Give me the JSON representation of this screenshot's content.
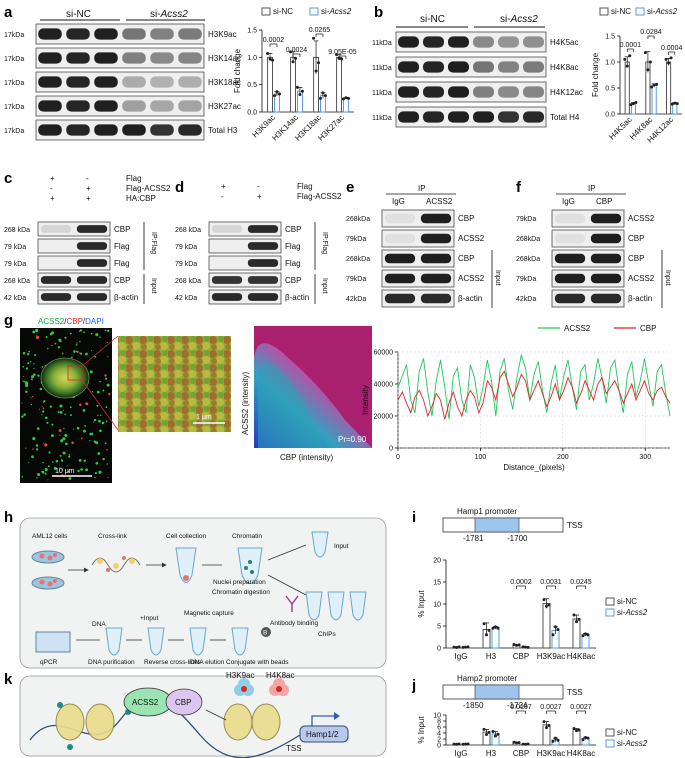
{
  "panel_a": {
    "letter": "a",
    "group_nc": "si-NC",
    "group_si_prefix": "si-",
    "group_si_gene": "Acss2",
    "blots": [
      {
        "kda": "17kDa",
        "label": "H3K9ac",
        "si_strength": 0.55
      },
      {
        "kda": "17kDa",
        "label": "H3K14ac",
        "si_strength": 0.5
      },
      {
        "kda": "17kDa",
        "label": "H3K18ac",
        "si_strength": 0.3
      },
      {
        "kda": "17kDa",
        "label": "H3K27ac",
        "si_strength": 0.35
      },
      {
        "kda": "17kDa",
        "label": "Total H3",
        "si_strength": 0.95
      }
    ]
  },
  "panel_b": {
    "letter": "b",
    "group_nc": "si-NC",
    "group_si_prefix": "si-",
    "group_si_gene": "Acss2",
    "blots": [
      {
        "kda": "11kDa",
        "label": "H4K5ac",
        "si_strength": 0.45
      },
      {
        "kda": "11kDa",
        "label": "H4K8ac",
        "si_strength": 0.55
      },
      {
        "kda": "11kDa",
        "label": "H4K12ac",
        "si_strength": 0.5
      },
      {
        "kda": "11kDa",
        "label": "Total H4",
        "si_strength": 0.95
      }
    ]
  },
  "panel_c": {
    "letter": "c",
    "rows": [
      {
        "label": "Flag",
        "signs": [
          "+",
          "-"
        ]
      },
      {
        "label": "Flag-ACSS2",
        "signs": [
          "-",
          "+"
        ]
      },
      {
        "label": "HA:CBP",
        "signs": [
          "+",
          "+"
        ]
      }
    ],
    "blots": [
      {
        "kda": "268 kDa",
        "label": "CBP",
        "pattern": [
          0.1,
          0.9
        ]
      },
      {
        "kda": "79 kDa",
        "label": "Flag",
        "pattern": [
          0.0,
          0.9
        ]
      },
      {
        "kda": "79 kDa",
        "label": "Flag",
        "pattern": [
          0.0,
          0.9
        ]
      },
      {
        "kda": "268 kDa",
        "label": "CBP",
        "pattern": [
          0.9,
          0.9
        ]
      },
      {
        "kda": "42 kDa",
        "label": "β-actin",
        "pattern": [
          0.9,
          0.9
        ]
      }
    ],
    "bracket_ip": "IP:Flag",
    "bracket_input": "Input"
  },
  "panel_d": {
    "letter": "d",
    "rows": [
      {
        "label": "Flag",
        "signs": [
          "+",
          "-"
        ]
      },
      {
        "label": "Flag-ACSS2",
        "signs": [
          "-",
          "+"
        ]
      }
    ],
    "blots": [
      {
        "kda": "268 kDa",
        "label": "CBP",
        "pattern": [
          0.1,
          0.9
        ]
      },
      {
        "kda": "79 kDa",
        "label": "Flag",
        "pattern": [
          0.0,
          0.9
        ]
      },
      {
        "kda": "79 kDa",
        "label": "Flag",
        "pattern": [
          0.0,
          0.9
        ]
      },
      {
        "kda": "268 kDa",
        "label": "CBP",
        "pattern": [
          0.85,
          0.85
        ]
      },
      {
        "kda": "42 kDa",
        "label": "β-actin",
        "pattern": [
          0.9,
          0.9
        ]
      }
    ],
    "bracket_ip": "IP:Flag",
    "bracket_input": "Input"
  },
  "panel_e": {
    "letter": "e",
    "ip_header": "IP",
    "lanes": [
      "IgG",
      "ACSS2"
    ],
    "blots": [
      {
        "kda": "268kDa",
        "label": "CBP",
        "pattern": [
          0.05,
          0.95
        ]
      },
      {
        "kda": "79kDa",
        "label": "ACSS2",
        "pattern": [
          0.05,
          0.95
        ]
      },
      {
        "kda": "268kDa",
        "label": "CBP",
        "pattern": [
          0.95,
          0.95
        ]
      },
      {
        "kda": "79kDa",
        "label": "ACSS2",
        "pattern": [
          0.95,
          0.95
        ]
      },
      {
        "kda": "42kDa",
        "label": "β-actin",
        "pattern": [
          0.9,
          0.9
        ]
      }
    ],
    "bracket_input": "Input"
  },
  "panel_f": {
    "letter": "f",
    "ip_header": "IP",
    "lanes": [
      "IgG",
      "CBP"
    ],
    "blots": [
      {
        "kda": "79kDa",
        "label": "ACSS2",
        "pattern": [
          0.05,
          0.95
        ]
      },
      {
        "kda": "268kDa",
        "label": "CBP",
        "pattern": [
          0.05,
          0.95
        ]
      },
      {
        "kda": "268kDa",
        "label": "CBP",
        "pattern": [
          0.95,
          0.95
        ]
      },
      {
        "kda": "79kDa",
        "label": "ACSS2",
        "pattern": [
          0.95,
          0.95
        ]
      },
      {
        "kda": "42kDa",
        "label": "β-actin",
        "pattern": [
          0.9,
          0.9
        ]
      }
    ],
    "bracket_input": "Input"
  },
  "panel_g": {
    "letter": "g",
    "stain_acss2": "ACSS2",
    "stain_cbp": "CBP",
    "stain_dapi": "DAPI",
    "scale_main": "10 μm",
    "scale_zoom": "1 μm",
    "scatter_xlabel": "CBP (intensity)",
    "scatter_ylabel": "ACSS2 (intensity)",
    "pearson": "Pr=0.90",
    "colors": {
      "acss2": "#22c55e",
      "cbp": "#dc2626",
      "dapi": "#2563eb"
    }
  },
  "panel_h": {
    "letter": "h",
    "labels": {
      "aml12": "AML12 cells",
      "crosslink": "Cross-link",
      "collection": "Cell collection",
      "chromatin": "Chromatin",
      "input": "Input",
      "nuclei": "Nuclei preparation",
      "digestion": "Chromatin digestion",
      "antibody": "Antibody binding",
      "chips": "ChIPs",
      "conjugate": "Conjugate with beads",
      "magnetic": "Magnetic capture",
      "elution": "DNA elution",
      "plus_input": "+Input",
      "reverse": "Reverse cross-links",
      "purification": "DNA purification",
      "qpcr": "qPCR",
      "bead": "B"
    }
  },
  "panel_k": {
    "letter": "k",
    "labels": {
      "acss2": "ACSS2",
      "cbp": "CBP",
      "h3k9ac": "H3K9ac",
      "h4k8ac": "H4K8ac",
      "tss": "TSS",
      "hamp": "Hamp1/2"
    }
  },
  "chart_data": [
    {
      "id": "a",
      "type": "bar",
      "categories": [
        "H3K9ac",
        "H3K14ac",
        "H3K18ac",
        "H3K27ac"
      ],
      "series": [
        {
          "name": "si-NC",
          "values": [
            1.0,
            1.0,
            1.0,
            1.0
          ]
        },
        {
          "name": "si-Acss2",
          "values": [
            0.33,
            0.38,
            0.3,
            0.25
          ]
        }
      ],
      "points": {
        "si-NC": [
          [
            1.07,
            0.97,
            0.95
          ],
          [
            1.1,
            0.92,
            0.98
          ],
          [
            1.35,
            0.75,
            0.9
          ],
          [
            1.05,
            0.98,
            0.97
          ]
        ],
        "si-Acss2": [
          [
            0.3,
            0.37,
            0.33
          ],
          [
            0.45,
            0.32,
            0.38
          ],
          [
            0.25,
            0.35,
            0.3
          ],
          [
            0.24,
            0.26,
            0.25
          ]
        ]
      },
      "errors": {
        "si-NC": [
          0.07,
          0.1,
          0.3,
          0.05
        ],
        "si-Acss2": [
          0.04,
          0.07,
          0.05,
          0.01
        ]
      },
      "pvalues": [
        "0.0002",
        "0.0024",
        "0.0265",
        "9.05E-05"
      ],
      "ylabel": "Fold change",
      "ylim": [
        0,
        1.5
      ],
      "yticks": [
        "0.0",
        "0.5",
        "1.0",
        "1.5"
      ],
      "legend": "top"
    },
    {
      "id": "b",
      "type": "bar",
      "categories": [
        "H4K5ac",
        "H4K8ac",
        "H4K12ac"
      ],
      "series": [
        {
          "name": "si-NC",
          "values": [
            1.0,
            1.0,
            1.0
          ]
        },
        {
          "name": "si-Acss2",
          "values": [
            0.2,
            0.55,
            0.2
          ]
        }
      ],
      "points": {
        "si-NC": [
          [
            1.05,
            0.92,
            1.12
          ],
          [
            1.18,
            0.85,
            1.0
          ],
          [
            1.05,
            0.98,
            1.08
          ]
        ],
        "si-Acss2": [
          [
            0.18,
            0.2,
            0.22
          ],
          [
            0.52,
            0.56,
            0.57
          ],
          [
            0.19,
            0.21,
            0.2
          ]
        ]
      },
      "errors": {
        "si-NC": [
          0.1,
          0.2,
          0.07
        ],
        "si-Acss2": [
          0.02,
          0.03,
          0.02
        ]
      },
      "pvalues": [
        "0.0001",
        "0.0284",
        "0.0004"
      ],
      "ylabel": "Fold change",
      "ylim": [
        0,
        1.5
      ],
      "yticks": [
        "0.0",
        "0.5",
        "1.0",
        "1.5"
      ],
      "legend": "top"
    },
    {
      "id": "g",
      "type": "line",
      "x_range": [
        0,
        330
      ],
      "xticks": [
        0,
        100,
        200,
        300
      ],
      "ylim": [
        0,
        60000
      ],
      "yticks": [
        0,
        20000,
        40000,
        60000
      ],
      "xlabel": "Distance_(pixels)",
      "ylabel": "Intensity",
      "series": [
        {
          "name": "ACSS2",
          "color": "#22c55e",
          "values": [
            38000,
            45000,
            52000,
            30000,
            22000,
            48000,
            56000,
            35000,
            20000,
            42000,
            55000,
            38000,
            18000,
            45000,
            50000,
            30000,
            22000,
            52000,
            44000,
            26000,
            38000,
            55000,
            42000,
            20000,
            48000,
            56000,
            36000,
            24000,
            44000,
            58000,
            50000,
            30000,
            46000,
            54000,
            36000,
            22000,
            40000,
            52000,
            30000,
            45000,
            55000,
            38000,
            24000,
            48000,
            52000,
            30000,
            40000,
            56000,
            44000,
            28000,
            50000,
            55000,
            36000,
            22000,
            46000,
            54000,
            32000,
            42000,
            56000,
            40000,
            26000,
            48000,
            52000,
            34000,
            20000
          ]
        },
        {
          "name": "CBP",
          "color": "#dc2626",
          "values": [
            30000,
            35000,
            28000,
            22000,
            32000,
            36000,
            30000,
            20000,
            26000,
            34000,
            30000,
            18000,
            28000,
            35000,
            26000,
            20000,
            30000,
            36000,
            32000,
            22000,
            28000,
            42000,
            38000,
            30000,
            44000,
            48000,
            40000,
            32000,
            38000,
            46000,
            42000,
            30000,
            36000,
            42000,
            34000,
            26000,
            32000,
            40000,
            30000,
            36000,
            44000,
            38000,
            28000,
            34000,
            42000,
            36000,
            30000,
            40000,
            44000,
            34000,
            38000,
            42000,
            36000,
            28000,
            34000,
            40000,
            30000,
            36000,
            42000,
            34000,
            30000,
            36000,
            38000,
            32000,
            28000
          ]
        }
      ],
      "legend": "top-right"
    },
    {
      "id": "i",
      "type": "bar",
      "promoter_title": "Hamp1 promoter",
      "region_start": "-1781",
      "region_end": "-1700",
      "tss": "TSS",
      "categories": [
        "IgG",
        "H3",
        "CBP",
        "H3K9ac",
        "H4K8ac"
      ],
      "series": [
        {
          "name": "si-NC",
          "values": [
            0.2,
            4.2,
            0.7,
            10.1,
            6.6
          ]
        },
        {
          "name": "si-Acss2",
          "values": [
            0.2,
            4.6,
            0.2,
            4.0,
            3.0
          ]
        }
      ],
      "points": {
        "si-NC": [
          [
            0.2,
            0.1,
            0.25
          ],
          [
            5.5,
            3.0,
            4.0
          ],
          [
            0.8,
            0.6,
            0.7
          ],
          [
            11.0,
            9.5,
            9.8
          ],
          [
            7.5,
            6.0,
            6.5
          ]
        ],
        "si-Acss2": [
          [
            0.15,
            0.2,
            0.25
          ],
          [
            4.5,
            4.8,
            4.5
          ],
          [
            0.25,
            0.2,
            0.15
          ],
          [
            3.0,
            4.8,
            4.2
          ],
          [
            2.8,
            3.2,
            3.0
          ]
        ]
      },
      "errors": {
        "si-NC": [
          0.1,
          1.5,
          0.1,
          1.1,
          0.9
        ],
        "si-Acss2": [
          0.05,
          0.3,
          0.05,
          0.8,
          0.3
        ]
      },
      "pvalues": [
        "0.0002",
        "0.0031",
        "0.0245"
      ],
      "pvalue_categories": [
        "CBP",
        "H3K9ac",
        "H4K8ac"
      ],
      "ylabel": "% Input",
      "ylim": [
        0,
        20
      ],
      "yticks": [
        0,
        5,
        10,
        15,
        20
      ],
      "legend": "right"
    },
    {
      "id": "j",
      "type": "bar",
      "promoter_title": "Hamp2 promoter",
      "region_start": "-1850",
      "region_end": "-1724",
      "tss": "TSS",
      "categories": [
        "IgG",
        "H3",
        "CBP",
        "H3K9ac",
        "H4K8ac"
      ],
      "series": [
        {
          "name": "si-NC",
          "values": [
            0.3,
            4.3,
            0.8,
            6.7,
            5.1
          ]
        },
        {
          "name": "si-Acss2",
          "values": [
            0.3,
            3.7,
            0.3,
            1.7,
            2.2
          ]
        }
      ],
      "points": {
        "si-NC": [
          [
            0.3,
            0.25,
            0.35
          ],
          [
            5.2,
            3.5,
            4.2
          ],
          [
            0.9,
            0.7,
            0.8
          ],
          [
            7.8,
            5.8,
            6.5
          ],
          [
            5.5,
            4.8,
            5.0
          ]
        ],
        "si-Acss2": [
          [
            0.25,
            0.3,
            0.35
          ],
          [
            4.5,
            3.0,
            3.6
          ],
          [
            0.3,
            0.25,
            0.35
          ],
          [
            1.2,
            2.3,
            1.6
          ],
          [
            1.8,
            2.5,
            2.3
          ]
        ]
      },
      "errors": {
        "si-NC": [
          0.05,
          0.9,
          0.1,
          1.1,
          0.4
        ],
        "si-Acss2": [
          0.05,
          0.8,
          0.05,
          0.6,
          0.4
        ]
      },
      "pvalues": [
        "0.0107",
        "0.0027",
        "0.0027"
      ],
      "pvalue_categories": [
        "CBP",
        "H3K9ac",
        "H4K8ac"
      ],
      "ylabel": "% Input",
      "ylim": [
        0,
        10
      ],
      "yticks": [
        0,
        2,
        4,
        6,
        8,
        10
      ],
      "legend": "right"
    }
  ]
}
